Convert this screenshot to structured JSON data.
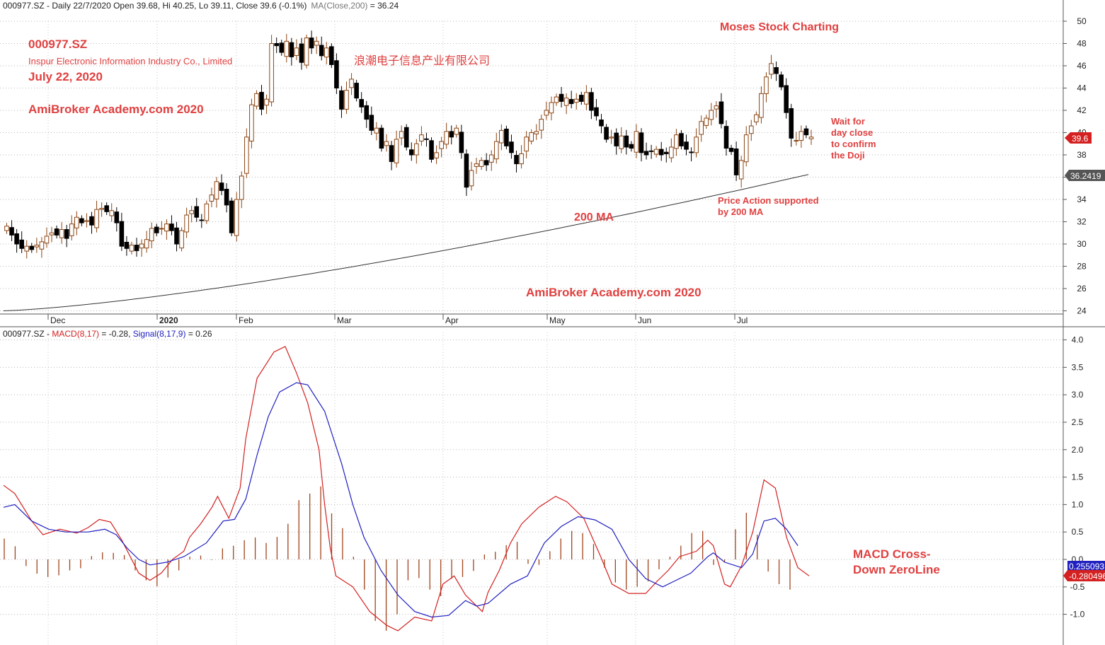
{
  "price_panel": {
    "header": {
      "symbol_info": "000977.SZ - Daily 22/7/2020 Open 39.68, Hi 40.25, Lo 39.11, Close 39.6 (-0.1%)",
      "ma_label": "MA(Close,200)",
      "ma_value": " = 36.24"
    },
    "annotations": {
      "ticker": "000977.SZ",
      "company": "Inspur Electronic Information Industry Co., Limited",
      "date": "July 22, 2020",
      "academy_left": "AmiBroker Academy.com  2020",
      "chinese_name": "浪潮电子信息产业有限公司",
      "moses": "Moses Stock Charting",
      "wait_1": "Wait for",
      "wait_2": "day close",
      "wait_3": "to confirm",
      "wait_4": "the Doji",
      "support_1": "Price Action supported",
      "support_2": "by 200 MA",
      "ma200": "200 MA",
      "academy_center": "AmiBroker Academy.com  2020"
    },
    "last_price_tag": "39.6",
    "ma_price_tag": "36.2419"
  },
  "macd_panel": {
    "header": {
      "prefix": "000977.SZ - ",
      "macd_label": "MACD(8,17)",
      "macd_value": " = -0.28, ",
      "signal_label": "Signal(8,17,9)",
      "signal_value": " = 0.26"
    },
    "annotations": {
      "cross_1": "MACD Cross-",
      "cross_2": "Down ZeroLine"
    },
    "signal_tag": "0.255093",
    "macd_tag": "-0.280496"
  },
  "chart_data": [
    {
      "type": "candlestick",
      "title": "000977.SZ - Daily 22/7/2020 Open 39.68, Hi 40.25, Lo 39.11, Close 39.6 (-0.1%)",
      "x_ticks": [
        "Dec",
        "2020",
        "Feb",
        "Mar",
        "Apr",
        "May",
        "Jun",
        "Jul"
      ],
      "y_ticks": [
        24,
        26,
        28,
        30,
        32,
        34,
        36,
        38,
        40,
        42,
        44,
        46,
        48,
        50
      ],
      "ylim": [
        23,
        51.4
      ],
      "grid": true,
      "last": {
        "open": 39.68,
        "high": 40.25,
        "low": 39.11,
        "close": 39.6
      },
      "closes": [
        31.6,
        30.8,
        30.0,
        29.6,
        29.8,
        29.5,
        29.9,
        30.2,
        30.7,
        31.0,
        30.8,
        31.3,
        30.5,
        31.8,
        32.4,
        31.9,
        32.1,
        31.7,
        33.1,
        33.2,
        32.9,
        33.0,
        31.9,
        29.8,
        29.6,
        29.9,
        29.4,
        30.0,
        30.4,
        31.4,
        31.0,
        31.4,
        31.8,
        31.2,
        30.0,
        31.2,
        32.6,
        33.0,
        32.4,
        32.1,
        33.6,
        34.4,
        35.6,
        34.8,
        33.5,
        31.0,
        34.0,
        36.1,
        39.6,
        42.5,
        43.5,
        42.1,
        43.0,
        48.0,
        47.8,
        47.2,
        48.2,
        46.8,
        47.6,
        46.3,
        48.5,
        47.6,
        48.2,
        46.9,
        47.6,
        46.1,
        44.0,
        42.1,
        43.8,
        44.8,
        43.1,
        42.3,
        41.2,
        40.2,
        40.4,
        38.6,
        39.2,
        37.4,
        39.4,
        40.1,
        38.7,
        38.0,
        39.0,
        39.8,
        39.4,
        37.6,
        38.2,
        39.2,
        40.1,
        39.6,
        40.4,
        38.2,
        35.1,
        36.6,
        37.2,
        37.5,
        37.1,
        38.0,
        39.2,
        40.2,
        38.8,
        38.2,
        37.2,
        38.1,
        39.6,
        40.0,
        40.1,
        41.2,
        42.0,
        42.7,
        43.2,
        42.8,
        43.1,
        42.6,
        43.0,
        42.8,
        43.6,
        42.0,
        41.5,
        40.6,
        39.4,
        39.6,
        38.8,
        39.7,
        38.7,
        38.6,
        40.1,
        38.2,
        38.0,
        38.3,
        38.5,
        38.0,
        38.1,
        38.7,
        39.8,
        38.8,
        38.5,
        38.2,
        39.6,
        41.0,
        41.3,
        42.0,
        42.4,
        40.8,
        38.6,
        38.3,
        36.2,
        37.5,
        39.8,
        40.6,
        41.6,
        43.5,
        45.0,
        46.2,
        45.3,
        44.1,
        41.8,
        39.5,
        39.3,
        40.1,
        39.8,
        39.6
      ],
      "series": [
        {
          "name": "MA(Close,200)",
          "values": [
            24.0,
            36.24
          ]
        }
      ]
    },
    {
      "type": "line",
      "title": "000977.SZ - MACD(8,17) = -0.28, Signal(8,17,9) = 0.26",
      "x_ticks": [
        "Dec",
        "2020",
        "Feb",
        "Mar",
        "Apr",
        "May",
        "Jun",
        "Jul"
      ],
      "y_ticks": [
        -1.0,
        -0.5,
        0.0,
        0.5,
        1.0,
        1.5,
        2.0,
        2.5,
        3.0,
        3.5,
        4.0
      ],
      "ylim": [
        -1.6,
        4.2
      ],
      "grid": true,
      "series": [
        {
          "name": "MACD(8,17)",
          "color": "#d42020",
          "points": [
            [
              0,
              1.35
            ],
            [
              4,
              1.2
            ],
            [
              10,
              0.7
            ],
            [
              14,
              0.45
            ],
            [
              20,
              0.55
            ],
            [
              26,
              0.48
            ],
            [
              30,
              0.58
            ],
            [
              34,
              0.73
            ],
            [
              38,
              0.68
            ],
            [
              42,
              0.35
            ],
            [
              48,
              -0.25
            ],
            [
              52,
              -0.38
            ],
            [
              56,
              -0.25
            ],
            [
              60,
              0.0
            ],
            [
              64,
              0.15
            ],
            [
              66,
              0.4
            ],
            [
              70,
              0.65
            ],
            [
              74,
              0.95
            ],
            [
              76,
              1.15
            ],
            [
              80,
              0.75
            ],
            [
              84,
              1.3
            ],
            [
              86,
              2.2
            ],
            [
              90,
              3.3
            ],
            [
              96,
              3.78
            ],
            [
              100,
              3.88
            ],
            [
              104,
              3.4
            ],
            [
              108,
              2.85
            ],
            [
              112,
              2.0
            ],
            [
              114,
              1.0
            ],
            [
              116,
              0.2
            ],
            [
              118,
              -0.3
            ],
            [
              124,
              -0.5
            ],
            [
              130,
              -0.95
            ],
            [
              136,
              -1.2
            ],
            [
              140,
              -1.3
            ],
            [
              146,
              -1.05
            ],
            [
              152,
              -1.12
            ],
            [
              156,
              -0.45
            ],
            [
              160,
              -0.3
            ],
            [
              164,
              -0.65
            ],
            [
              170,
              -0.95
            ],
            [
              172,
              -0.6
            ],
            [
              176,
              -0.2
            ],
            [
              180,
              0.3
            ],
            [
              184,
              0.65
            ],
            [
              190,
              0.95
            ],
            [
              196,
              1.15
            ],
            [
              200,
              1.05
            ],
            [
              206,
              0.75
            ],
            [
              212,
              0.05
            ],
            [
              216,
              -0.45
            ],
            [
              222,
              -0.62
            ],
            [
              228,
              -0.62
            ],
            [
              232,
              -0.4
            ],
            [
              236,
              -0.2
            ],
            [
              240,
              0.05
            ],
            [
              246,
              0.15
            ],
            [
              250,
              0.35
            ],
            [
              252,
              0.25
            ],
            [
              256,
              -0.45
            ],
            [
              258,
              -0.5
            ],
            [
              262,
              -0.12
            ],
            [
              266,
              0.5
            ],
            [
              270,
              1.45
            ],
            [
              274,
              1.3
            ],
            [
              278,
              0.4
            ],
            [
              282,
              -0.15
            ],
            [
              286,
              -0.3
            ]
          ]
        },
        {
          "name": "Signal(8,17,9)",
          "color": "#2020c0",
          "points": [
            [
              0,
              0.95
            ],
            [
              4,
              1.0
            ],
            [
              10,
              0.7
            ],
            [
              16,
              0.55
            ],
            [
              22,
              0.5
            ],
            [
              30,
              0.5
            ],
            [
              36,
              0.55
            ],
            [
              40,
              0.45
            ],
            [
              44,
              0.2
            ],
            [
              48,
              0.0
            ],
            [
              52,
              -0.1
            ],
            [
              58,
              -0.05
            ],
            [
              64,
              0.05
            ],
            [
              72,
              0.3
            ],
            [
              78,
              0.7
            ],
            [
              82,
              0.73
            ],
            [
              86,
              1.1
            ],
            [
              90,
              1.9
            ],
            [
              94,
              2.6
            ],
            [
              98,
              3.05
            ],
            [
              104,
              3.22
            ],
            [
              108,
              3.18
            ],
            [
              114,
              2.7
            ],
            [
              120,
              1.75
            ],
            [
              124,
              1.0
            ],
            [
              128,
              0.4
            ],
            [
              134,
              -0.2
            ],
            [
              140,
              -0.65
            ],
            [
              146,
              -0.95
            ],
            [
              152,
              -1.05
            ],
            [
              158,
              -1.02
            ],
            [
              164,
              -0.75
            ],
            [
              168,
              -0.85
            ],
            [
              172,
              -0.8
            ],
            [
              180,
              -0.45
            ],
            [
              186,
              -0.3
            ],
            [
              192,
              0.3
            ],
            [
              198,
              0.6
            ],
            [
              204,
              0.78
            ],
            [
              210,
              0.72
            ],
            [
              216,
              0.55
            ],
            [
              222,
              -0.0
            ],
            [
              228,
              -0.35
            ],
            [
              234,
              -0.5
            ],
            [
              238,
              -0.4
            ],
            [
              244,
              -0.25
            ],
            [
              250,
              0.05
            ],
            [
              252,
              0.12
            ],
            [
              256,
              -0.05
            ],
            [
              262,
              -0.15
            ],
            [
              266,
              0.1
            ],
            [
              270,
              0.7
            ],
            [
              274,
              0.75
            ],
            [
              278,
              0.55
            ],
            [
              282,
              0.25
            ]
          ]
        },
        {
          "name": "MACD Histogram",
          "values": [
            0.38,
            0.24,
            -0.12,
            -0.26,
            -0.32,
            -0.29,
            -0.2,
            -0.16,
            0.06,
            0.13,
            0.12,
            0.08,
            -0.2,
            -0.38,
            -0.49,
            -0.33,
            -0.2,
            0.05,
            0.07,
            -0.01,
            0.2,
            0.25,
            0.35,
            0.4,
            0.3,
            0.41,
            0.65,
            1.08,
            1.2,
            1.33,
            0.84,
            0.57,
            0.05,
            -0.55,
            -1.12,
            -1.3,
            -1.0,
            -0.38,
            -0.34,
            -0.55,
            -0.67,
            -0.35,
            -0.32,
            -0.21,
            0.09,
            0.14,
            0.26,
            0.32,
            -0.08,
            -0.1,
            0.15,
            0.38,
            0.52,
            0.48,
            0.28,
            -0.15,
            -0.42,
            -0.55,
            -0.5,
            -0.4,
            -0.18,
            0.05,
            0.25,
            0.48,
            0.52,
            -0.1,
            -0.05,
            0.55,
            0.85,
            0.45,
            -0.22,
            -0.45,
            -0.55
          ]
        }
      ]
    }
  ]
}
